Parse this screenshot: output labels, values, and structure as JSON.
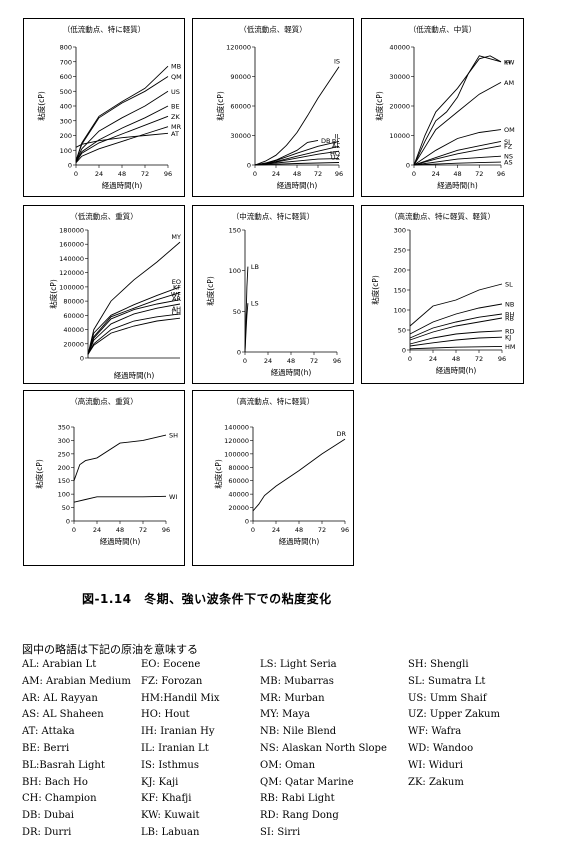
{
  "figure_title": "図-1.14　冬期、強い波条件下での粘度変化",
  "legend_heading": "図中の略語は下記の原油を意味する",
  "legend_columns": [
    [
      "AL: Arabian Lt",
      "AM: Arabian Medium",
      "AR: AL Rayyan",
      "AS: AL Shaheen",
      "AT: Attaka",
      "BE: Berri",
      "BL:Basrah Light",
      "BH: Bach Ho",
      "CH: Champion",
      "DB: Dubai",
      "DR: Durri"
    ],
    [
      "EO: Eocene",
      "FZ: Forozan",
      "HM:Handil Mix",
      "HO: Hout",
      "IH: Iranian Hy",
      "IL: Iranian Lt",
      "IS: Isthmus",
      "KJ: Kaji",
      "KF: Khafji",
      "KW: Kuwait",
      "LB: Labuan"
    ],
    [
      "LS: Light Seria",
      "MB: Mubarras",
      "MR: Murban",
      "MY: Maya",
      "NB: Nile Blend",
      "NS: Alaskan North Slope",
      "OM: Oman",
      "QM: Qatar Marine",
      "RB: Rabi Light",
      "RD: Rang Dong",
      "SI: Sirri"
    ],
    [
      "SH: Shengli",
      "SL: Sumatra Lt",
      "US: Umm Shaif",
      "UZ: Upper Zakum",
      "WF: Wafra",
      "WD: Wandoo",
      "WI: Widuri",
      "ZK: Zakum"
    ]
  ],
  "chart_data": [
    {
      "type": "line",
      "title": "（低流動点、特に軽質）",
      "xlabel": "経過時間(h)",
      "ylabel": "粘度(cP)",
      "xlim": [
        0,
        96
      ],
      "ylim": [
        0,
        800
      ],
      "xticks": [
        0,
        24,
        48,
        72,
        96
      ],
      "yticks": [
        0,
        100,
        200,
        300,
        400,
        500,
        600,
        700,
        800
      ],
      "series": [
        {
          "name": "MB",
          "x": [
            0,
            6,
            24,
            48,
            72,
            96
          ],
          "y": [
            30,
            150,
            330,
            430,
            520,
            670
          ]
        },
        {
          "name": "QM",
          "x": [
            0,
            6,
            24,
            48,
            72,
            96
          ],
          "y": [
            30,
            140,
            320,
            420,
            500,
            600
          ]
        },
        {
          "name": "US",
          "x": [
            0,
            6,
            24,
            48,
            72,
            96
          ],
          "y": [
            25,
            110,
            230,
            320,
            400,
            500
          ]
        },
        {
          "name": "BE",
          "x": [
            0,
            6,
            24,
            48,
            72,
            96
          ],
          "y": [
            20,
            90,
            170,
            250,
            320,
            400
          ]
        },
        {
          "name": "ZK",
          "x": [
            0,
            6,
            24,
            48,
            72,
            96
          ],
          "y": [
            18,
            80,
            150,
            210,
            270,
            330
          ]
        },
        {
          "name": "MR",
          "x": [
            0,
            6,
            24,
            48,
            72,
            96
          ],
          "y": [
            15,
            60,
            110,
            160,
            210,
            260
          ]
        },
        {
          "name": "AT",
          "x": [
            0,
            6,
            24,
            48,
            72,
            96
          ],
          "y": [
            120,
            140,
            165,
            185,
            200,
            215
          ]
        }
      ]
    },
    {
      "type": "line",
      "title": "（低流動点、軽質）",
      "xlabel": "経過時間(h)",
      "ylabel": "粘度(cP)",
      "xlim": [
        0,
        96
      ],
      "ylim": [
        0,
        120000
      ],
      "xticks": [
        0,
        24,
        48,
        72,
        96
      ],
      "yticks": [
        0,
        30000,
        60000,
        90000,
        120000
      ],
      "series": [
        {
          "name": "IS",
          "x": [
            0,
            12,
            24,
            36,
            48,
            60,
            72,
            96
          ],
          "y": [
            0,
            4000,
            10000,
            20000,
            33000,
            50000,
            68000,
            100000
          ]
        },
        {
          "name": "DB",
          "x": [
            0,
            12,
            24,
            48,
            60,
            72
          ],
          "y": [
            0,
            2000,
            5000,
            15000,
            23000,
            25000
          ]
        },
        {
          "name": "IL",
          "x": [
            0,
            12,
            24,
            48,
            72,
            96
          ],
          "y": [
            0,
            1500,
            4500,
            12000,
            19000,
            24000
          ]
        },
        {
          "name": "BL",
          "x": [
            0,
            12,
            24,
            48,
            72,
            96
          ],
          "y": [
            0,
            1200,
            3500,
            9000,
            14000,
            19000
          ]
        },
        {
          "name": "AL",
          "x": [
            0,
            12,
            24,
            48,
            72,
            96
          ],
          "y": [
            0,
            1000,
            3000,
            7000,
            11000,
            14000
          ]
        },
        {
          "name": "HO",
          "x": [
            0,
            12,
            24,
            48,
            72,
            96
          ],
          "y": [
            0,
            800,
            2000,
            4000,
            6000,
            6500
          ]
        },
        {
          "name": "UZ",
          "x": [
            0,
            12,
            24,
            48,
            72,
            96
          ],
          "y": [
            0,
            300,
            800,
            1500,
            2000,
            2500
          ]
        }
      ]
    },
    {
      "type": "line",
      "title": "（低流動点、中質）",
      "xlabel": "経過時間(h)",
      "ylabel": "粘度(cP)",
      "xlim": [
        0,
        96
      ],
      "ylim": [
        0,
        40000
      ],
      "xticks": [
        0,
        24,
        48,
        72,
        96
      ],
      "yticks": [
        0,
        10000,
        20000,
        30000,
        40000
      ],
      "series": [
        {
          "name": "IH",
          "x": [
            0,
            12,
            24,
            48,
            72,
            84,
            96
          ],
          "y": [
            0,
            10000,
            18000,
            26000,
            36000,
            37000,
            35000
          ]
        },
        {
          "name": "KW",
          "x": [
            0,
            12,
            24,
            36,
            48,
            60,
            72,
            96
          ],
          "y": [
            0,
            8000,
            15000,
            18000,
            23000,
            31000,
            37000,
            35000
          ]
        },
        {
          "name": "AM",
          "x": [
            0,
            12,
            24,
            48,
            72,
            96
          ],
          "y": [
            0,
            6000,
            12000,
            18000,
            24000,
            28000
          ]
        },
        {
          "name": "OM",
          "x": [
            0,
            24,
            48,
            72,
            96
          ],
          "y": [
            0,
            5000,
            9000,
            11000,
            12000
          ]
        },
        {
          "name": "SI",
          "x": [
            0,
            24,
            48,
            72,
            96
          ],
          "y": [
            0,
            2500,
            5000,
            6500,
            8000
          ]
        },
        {
          "name": "FZ",
          "x": [
            0,
            24,
            48,
            72,
            96
          ],
          "y": [
            0,
            2000,
            3800,
            5200,
            6500
          ]
        },
        {
          "name": "NS",
          "x": [
            0,
            24,
            48,
            72,
            96
          ],
          "y": [
            0,
            1000,
            2000,
            2500,
            3000
          ]
        },
        {
          "name": "AS",
          "x": [
            0,
            24,
            48,
            72,
            96
          ],
          "y": [
            0,
            300,
            600,
            800,
            1000
          ]
        }
      ]
    },
    {
      "type": "line",
      "title": "（低流動点、重質）",
      "xlabel": "経過時間(h)",
      "ylabel": "粘度(cP)",
      "xlim": [
        0,
        96
      ],
      "ylim": [
        0,
        180000
      ],
      "xticks": [],
      "yticks": [
        0,
        20000,
        40000,
        60000,
        80000,
        100000,
        120000,
        140000,
        160000,
        180000
      ],
      "series": [
        {
          "name": "MY",
          "x": [
            0,
            6,
            24,
            48,
            72,
            96
          ],
          "y": [
            5000,
            40000,
            80000,
            110000,
            135000,
            163000
          ]
        },
        {
          "name": "EO",
          "x": [
            0,
            6,
            24,
            48,
            72,
            96
          ],
          "y": [
            5000,
            35000,
            60000,
            75000,
            88000,
            100000
          ]
        },
        {
          "name": "KF",
          "x": [
            0,
            6,
            24,
            48,
            72,
            96
          ],
          "y": [
            5000,
            30000,
            58000,
            70000,
            82000,
            92000
          ]
        },
        {
          "name": "WF",
          "x": [
            0,
            6,
            24,
            48,
            72,
            96
          ],
          "y": [
            5000,
            28000,
            55000,
            68000,
            76000,
            82000
          ]
        },
        {
          "name": "AR",
          "x": [
            0,
            6,
            24,
            48,
            72,
            96
          ],
          "y": [
            5000,
            25000,
            48000,
            62000,
            70000,
            76000
          ]
        },
        {
          "name": "AH",
          "x": [
            0,
            6,
            24,
            48,
            72,
            96
          ],
          "y": [
            5000,
            20000,
            40000,
            52000,
            58000,
            62000
          ]
        },
        {
          "name": "CH",
          "x": [
            0,
            6,
            24,
            48,
            72,
            96
          ],
          "y": [
            5000,
            18000,
            35000,
            45000,
            52000,
            56000
          ]
        }
      ]
    },
    {
      "type": "line",
      "title": "（中流動点、特に軽質）",
      "xlabel": "経過時間(h)",
      "ylabel": "粘度(cP)",
      "xlim": [
        0,
        96
      ],
      "ylim": [
        0,
        150
      ],
      "xticks": [
        0,
        24,
        48,
        72,
        96
      ],
      "yticks": [
        0,
        50,
        100,
        150
      ],
      "series": [
        {
          "name": "LB",
          "x": [
            0,
            1,
            2,
            3
          ],
          "y": [
            0,
            40,
            80,
            105
          ]
        },
        {
          "name": "LS",
          "x": [
            0,
            1,
            2,
            3
          ],
          "y": [
            0,
            25,
            45,
            60
          ]
        }
      ]
    },
    {
      "type": "line",
      "title": "（高流動点、特に軽質、軽質）",
      "xlabel": "経過時間(h)",
      "ylabel": "粘度(cP)",
      "xlim": [
        0,
        96
      ],
      "ylim": [
        0,
        300
      ],
      "xticks": [
        0,
        24,
        48,
        72,
        96
      ],
      "yticks": [
        0,
        50,
        100,
        150,
        200,
        250,
        300
      ],
      "series": [
        {
          "name": "SL",
          "x": [
            0,
            24,
            48,
            72,
            96
          ],
          "y": [
            60,
            110,
            125,
            150,
            165
          ]
        },
        {
          "name": "NB",
          "x": [
            0,
            24,
            48,
            72,
            96
          ],
          "y": [
            40,
            70,
            90,
            105,
            115
          ]
        },
        {
          "name": "BH",
          "x": [
            0,
            24,
            48,
            72,
            96
          ],
          "y": [
            30,
            55,
            70,
            82,
            90
          ]
        },
        {
          "name": "RB",
          "x": [
            0,
            24,
            48,
            72,
            96
          ],
          "y": [
            25,
            45,
            60,
            70,
            80
          ]
        },
        {
          "name": "RD",
          "x": [
            0,
            24,
            48,
            72,
            96
          ],
          "y": [
            15,
            30,
            40,
            45,
            48
          ]
        },
        {
          "name": "KJ",
          "x": [
            0,
            24,
            48,
            72,
            96
          ],
          "y": [
            10,
            18,
            25,
            30,
            32
          ]
        },
        {
          "name": "HM",
          "x": [
            0,
            24,
            48,
            72,
            96
          ],
          "y": [
            3,
            5,
            7,
            8,
            9
          ]
        }
      ]
    },
    {
      "type": "line",
      "title": "（高流動点、重質）",
      "xlabel": "経過時間(h)",
      "ylabel": "粘度(cP)",
      "xlim": [
        0,
        96
      ],
      "ylim": [
        0,
        350
      ],
      "xticks": [
        0,
        24,
        48,
        72,
        96
      ],
      "yticks": [
        0,
        50,
        100,
        150,
        200,
        250,
        300,
        350
      ],
      "series": [
        {
          "name": "SH",
          "x": [
            0,
            6,
            12,
            24,
            48,
            72,
            96
          ],
          "y": [
            150,
            210,
            225,
            235,
            290,
            300,
            320
          ]
        },
        {
          "name": "WI",
          "x": [
            0,
            12,
            24,
            48,
            72,
            96
          ],
          "y": [
            70,
            80,
            90,
            90,
            90,
            92
          ]
        }
      ]
    },
    {
      "type": "line",
      "title": "（高流動点、特に軽質）",
      "xlabel": "経過時間(h)",
      "ylabel": "粘度(cP)",
      "xlim": [
        0,
        96
      ],
      "ylim": [
        0,
        140000
      ],
      "xticks": [
        0,
        24,
        48,
        72,
        96
      ],
      "yticks": [
        0,
        20000,
        40000,
        60000,
        80000,
        100000,
        120000,
        140000
      ],
      "series": [
        {
          "name": "DR",
          "x": [
            0,
            6,
            12,
            24,
            48,
            72,
            96
          ],
          "y": [
            15000,
            25000,
            38000,
            52000,
            75000,
            100000,
            122000
          ]
        }
      ]
    }
  ]
}
